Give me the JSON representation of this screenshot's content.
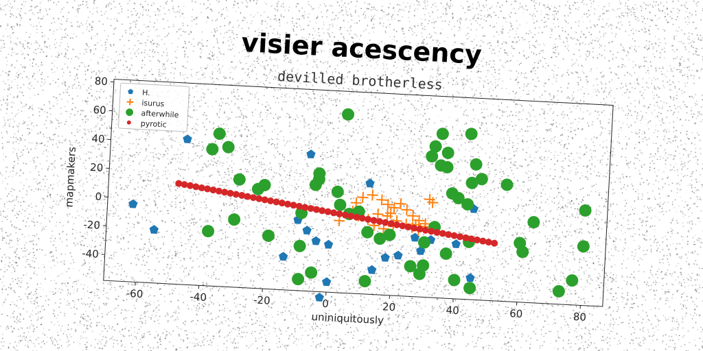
{
  "chart_data": {
    "type": "scatter",
    "title": "visier acescency",
    "subtitle": "devilled brotherless",
    "xlabel": "uniniquitously",
    "ylabel": "mapmakers",
    "xlim": [
      -70,
      87
    ],
    "ylim": [
      -58,
      82
    ],
    "xticks": [
      -60,
      -40,
      -20,
      0,
      20,
      40,
      60,
      80
    ],
    "yticks": [
      -40,
      -20,
      0,
      20,
      40,
      60,
      80
    ],
    "grid": false,
    "legend": "top-left",
    "series": [
      {
        "name": "H.",
        "marker": "pentagon",
        "color": "#1f77b4",
        "points": [
          [
            -46,
            43
          ],
          [
            -62,
            -4
          ],
          [
            -55,
            -21
          ],
          [
            -7,
            37
          ],
          [
            -10,
            -9
          ],
          [
            -7,
            -16
          ],
          [
            -4,
            -23
          ],
          [
            0,
            -25
          ],
          [
            -14,
            -35
          ],
          [
            0,
            -51
          ],
          [
            -2,
            -62
          ],
          [
            12,
            19
          ],
          [
            14,
            -41
          ],
          [
            18,
            -32
          ],
          [
            22,
            -30
          ],
          [
            27,
            -17
          ],
          [
            29,
            -26
          ],
          [
            32,
            -18
          ],
          [
            45,
            -43
          ],
          [
            45,
            5
          ],
          [
            40,
            -20
          ]
        ]
      },
      {
        "name": "isurus",
        "marker": "plus",
        "color": "#ff7f0e",
        "points": [
          [
            8,
            5
          ],
          [
            10,
            9
          ],
          [
            13,
            11
          ],
          [
            16,
            8
          ],
          [
            18,
            5
          ],
          [
            20,
            3
          ],
          [
            22,
            6
          ],
          [
            24,
            2
          ],
          [
            26,
            -2
          ],
          [
            28,
            -5
          ],
          [
            30,
            -7
          ],
          [
            7,
            -1
          ],
          [
            9,
            -4
          ],
          [
            3,
            -8
          ],
          [
            12,
            -6
          ],
          [
            15,
            -2
          ],
          [
            18,
            -3
          ],
          [
            21,
            -6
          ],
          [
            24,
            -8
          ],
          [
            26,
            -10
          ],
          [
            28,
            -12
          ],
          [
            30,
            -9
          ],
          [
            20,
            -10
          ],
          [
            17,
            -12
          ],
          [
            14,
            -10
          ],
          [
            31,
            10
          ],
          [
            32,
            8
          ],
          [
            27,
            -8
          ],
          [
            19,
            -1
          ]
        ]
      },
      {
        "name": "afterwhile",
        "marker": "circle",
        "color": "#2ca02c",
        "points": [
          [
            4,
            66
          ],
          [
            -36,
            48
          ],
          [
            -38,
            37
          ],
          [
            -33,
            39
          ],
          [
            -29,
            17
          ],
          [
            -23,
            11
          ],
          [
            -21,
            14
          ],
          [
            -19,
            -21
          ],
          [
            -30,
            -11
          ],
          [
            -38,
            -20
          ],
          [
            -4,
            24
          ],
          [
            -4,
            20
          ],
          [
            -5,
            16
          ],
          [
            -9,
            -4
          ],
          [
            2,
            12
          ],
          [
            3,
            3
          ],
          [
            6,
            -3
          ],
          [
            9,
            -1
          ],
          [
            -9,
            -27
          ],
          [
            -9,
            -50
          ],
          [
            -5,
            -45
          ],
          [
            12,
            -49
          ],
          [
            12,
            -15
          ],
          [
            16,
            -19
          ],
          [
            19,
            -16
          ],
          [
            26,
            -37
          ],
          [
            29,
            -42
          ],
          [
            30,
            -36
          ],
          [
            30,
            -20
          ],
          [
            33,
            -9
          ],
          [
            37,
            -27
          ],
          [
            40,
            -45
          ],
          [
            45,
            -50
          ],
          [
            44,
            -18
          ],
          [
            34,
            56
          ],
          [
            32,
            47
          ],
          [
            36,
            43
          ],
          [
            34,
            34
          ],
          [
            36,
            33
          ],
          [
            45,
            36
          ],
          [
            47,
            26
          ],
          [
            44,
            23
          ],
          [
            38,
            15
          ],
          [
            40,
            12
          ],
          [
            43,
            8
          ],
          [
            55,
            23
          ],
          [
            64,
            -2
          ],
          [
            60,
            -17
          ],
          [
            61,
            -23
          ],
          [
            73,
            -49
          ],
          [
            77,
            -41
          ],
          [
            80,
            8
          ],
          [
            80,
            -17
          ],
          [
            43,
            57
          ],
          [
            31,
            40
          ]
        ]
      },
      {
        "name": "pyrotic",
        "marker": "circle-small",
        "color": "#d62728",
        "linear": {
          "x0": -48,
          "x1": 52,
          "y0": 12,
          "y1": -18,
          "count": 56
        }
      }
    ]
  }
}
